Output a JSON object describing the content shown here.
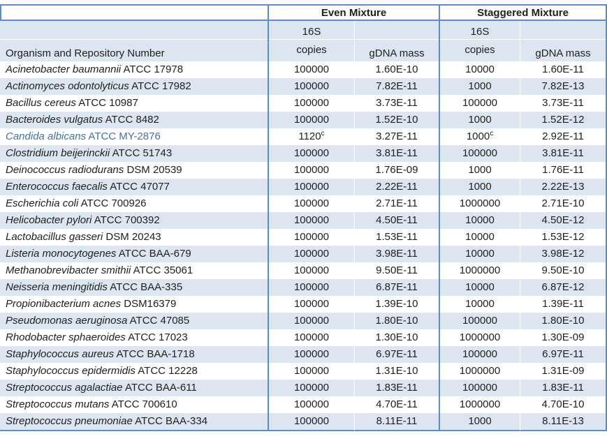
{
  "colors": {
    "border_blue": "#5b8ec8",
    "row_stripe": "#dce6f1",
    "highlight_species": "#4173a8",
    "text": "#212121"
  },
  "header": {
    "group1_label": "Even Mixture",
    "group2_label": "Staggered Mixture",
    "organism_col_label": "Organism and Repository Number",
    "copies_line1": "16S",
    "copies_line2": "copies",
    "mass_label": "gDNA mass"
  },
  "table": {
    "rows": [
      {
        "name": "Acinetobacter baumannii",
        "accession": "ATCC 17978",
        "even_copies": "100000",
        "even_copies_sup": "",
        "even_mass": "1.60E-10",
        "stag_copies": "10000",
        "stag_copies_sup": "",
        "stag_mass": "1.60E-11",
        "highlight": false
      },
      {
        "name": "Actinomyces odontolyticus",
        "accession": "ATCC 17982",
        "even_copies": "100000",
        "even_copies_sup": "",
        "even_mass": "7.82E-11",
        "stag_copies": "1000",
        "stag_copies_sup": "",
        "stag_mass": "7.82E-13",
        "highlight": false
      },
      {
        "name": "Bacillus cereus",
        "accession": "ATCC 10987",
        "even_copies": "100000",
        "even_copies_sup": "",
        "even_mass": "3.73E-11",
        "stag_copies": "100000",
        "stag_copies_sup": "",
        "stag_mass": "3.73E-11",
        "highlight": false
      },
      {
        "name": "Bacteroides vulgatus",
        "accession": "ATCC 8482",
        "even_copies": "100000",
        "even_copies_sup": "",
        "even_mass": "1.52E-10",
        "stag_copies": "1000",
        "stag_copies_sup": "",
        "stag_mass": "1.52E-12",
        "highlight": false
      },
      {
        "name": "Candida albicans",
        "accession": "ATCC MY-2876",
        "even_copies": "1120",
        "even_copies_sup": "c",
        "even_mass": "3.27E-11",
        "stag_copies": "1000",
        "stag_copies_sup": "c",
        "stag_mass": "2.92E-11",
        "highlight": true
      },
      {
        "name": "Clostridium beijerinckii",
        "accession": "ATCC 51743",
        "even_copies": "100000",
        "even_copies_sup": "",
        "even_mass": "3.81E-11",
        "stag_copies": "100000",
        "stag_copies_sup": "",
        "stag_mass": "3.81E-11",
        "highlight": false
      },
      {
        "name": "Deinococcus radiodurans",
        "accession": "DSM 20539",
        "even_copies": "100000",
        "even_copies_sup": "",
        "even_mass": "1.76E-09",
        "stag_copies": "1000",
        "stag_copies_sup": "",
        "stag_mass": "1.76E-11",
        "highlight": false
      },
      {
        "name": "Enterococcus faecalis",
        "accession": "ATCC 47077",
        "even_copies": "100000",
        "even_copies_sup": "",
        "even_mass": "2.22E-11",
        "stag_copies": "1000",
        "stag_copies_sup": "",
        "stag_mass": "2.22E-13",
        "highlight": false
      },
      {
        "name": "Escherichia coli",
        "accession": "ATCC 700926",
        "even_copies": "100000",
        "even_copies_sup": "",
        "even_mass": "2.71E-11",
        "stag_copies": "1000000",
        "stag_copies_sup": "",
        "stag_mass": "2.71E-10",
        "highlight": false
      },
      {
        "name": "Helicobacter pylori",
        "accession": "ATCC 700392",
        "even_copies": "100000",
        "even_copies_sup": "",
        "even_mass": "4.50E-11",
        "stag_copies": "10000",
        "stag_copies_sup": "",
        "stag_mass": "4.50E-12",
        "highlight": false
      },
      {
        "name": "Lactobacillus gasseri",
        "accession": "DSM 20243",
        "even_copies": "100000",
        "even_copies_sup": "",
        "even_mass": "1.53E-11",
        "stag_copies": "10000",
        "stag_copies_sup": "",
        "stag_mass": "1.53E-12",
        "highlight": false
      },
      {
        "name": "Listeria monocytogenes",
        "accession": "ATCC BAA-679",
        "even_copies": "100000",
        "even_copies_sup": "",
        "even_mass": "3.98E-11",
        "stag_copies": "10000",
        "stag_copies_sup": "",
        "stag_mass": "3.98E-12",
        "highlight": false
      },
      {
        "name": "Methanobrevibacter smithii",
        "accession": "ATCC 35061",
        "even_copies": "100000",
        "even_copies_sup": "",
        "even_mass": "9.50E-11",
        "stag_copies": "1000000",
        "stag_copies_sup": "",
        "stag_mass": "9.50E-10",
        "highlight": false
      },
      {
        "name": "Neisseria meningitidis",
        "accession": "ATCC BAA-335",
        "even_copies": "100000",
        "even_copies_sup": "",
        "even_mass": "6.87E-11",
        "stag_copies": "10000",
        "stag_copies_sup": "",
        "stag_mass": "6.87E-12",
        "highlight": false
      },
      {
        "name": "Propionibacterium acnes",
        "accession": "DSM16379",
        "even_copies": "100000",
        "even_copies_sup": "",
        "even_mass": "1.39E-10",
        "stag_copies": "10000",
        "stag_copies_sup": "",
        "stag_mass": "1.39E-11",
        "highlight": false
      },
      {
        "name": "Pseudomonas aeruginosa",
        "accession": "ATCC 47085",
        "even_copies": "100000",
        "even_copies_sup": "",
        "even_mass": "1.80E-10",
        "stag_copies": "100000",
        "stag_copies_sup": "",
        "stag_mass": "1.80E-10",
        "highlight": false
      },
      {
        "name": "Rhodobacter sphaeroides",
        "accession": "ATCC 17023",
        "even_copies": "100000",
        "even_copies_sup": "",
        "even_mass": "1.30E-10",
        "stag_copies": "1000000",
        "stag_copies_sup": "",
        "stag_mass": "1.30E-09",
        "highlight": false
      },
      {
        "name": "Staphylococcus aureus",
        "accession": "ATCC BAA-1718",
        "even_copies": "100000",
        "even_copies_sup": "",
        "even_mass": "6.97E-11",
        "stag_copies": "100000",
        "stag_copies_sup": "",
        "stag_mass": "6.97E-11",
        "highlight": false
      },
      {
        "name": "Staphylococcus epidermidis",
        "accession": "ATCC 12228",
        "even_copies": "100000",
        "even_copies_sup": "",
        "even_mass": "1.31E-10",
        "stag_copies": "1000000",
        "stag_copies_sup": "",
        "stag_mass": "1.31E-09",
        "highlight": false
      },
      {
        "name": "Streptococcus agalactiae",
        "accession": "ATCC BAA-611",
        "even_copies": "100000",
        "even_copies_sup": "",
        "even_mass": "1.83E-11",
        "stag_copies": "100000",
        "stag_copies_sup": "",
        "stag_mass": "1.83E-11",
        "highlight": false
      },
      {
        "name": "Streptococcus mutans",
        "accession": "ATCC 700610",
        "even_copies": "100000",
        "even_copies_sup": "",
        "even_mass": "4.70E-11",
        "stag_copies": "1000000",
        "stag_copies_sup": "",
        "stag_mass": "4.70E-10",
        "highlight": false
      },
      {
        "name": "Streptococcus pneumoniae",
        "accession": "ATCC BAA-334",
        "even_copies": "100000",
        "even_copies_sup": "",
        "even_mass": "8.11E-11",
        "stag_copies": "1000",
        "stag_copies_sup": "",
        "stag_mass": "8.11E-13",
        "highlight": false
      }
    ]
  }
}
